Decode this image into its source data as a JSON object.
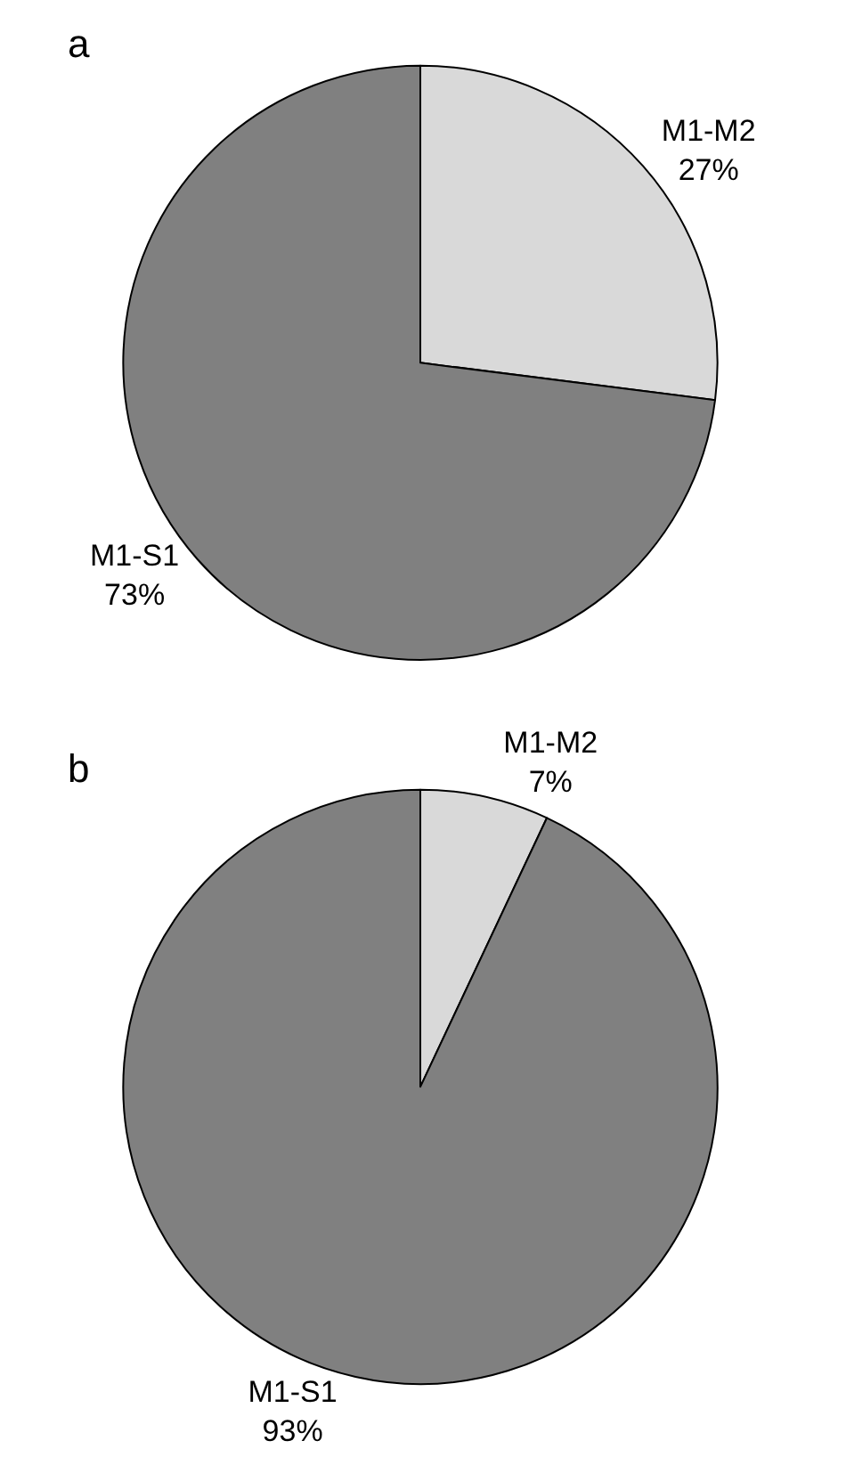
{
  "chart_data": [
    {
      "type": "pie",
      "title": "a",
      "categories": [
        "M1-M2",
        "M1-S1"
      ],
      "values": [
        27,
        73
      ],
      "colors": [
        "#d9d9d9",
        "#808080"
      ],
      "value_labels": [
        "27%",
        "73%"
      ]
    },
    {
      "type": "pie",
      "title": "b",
      "categories": [
        "M1-M2",
        "M1-S1"
      ],
      "values": [
        7,
        93
      ],
      "colors": [
        "#d9d9d9",
        "#808080"
      ],
      "value_labels": [
        "7%",
        "93%"
      ]
    }
  ]
}
